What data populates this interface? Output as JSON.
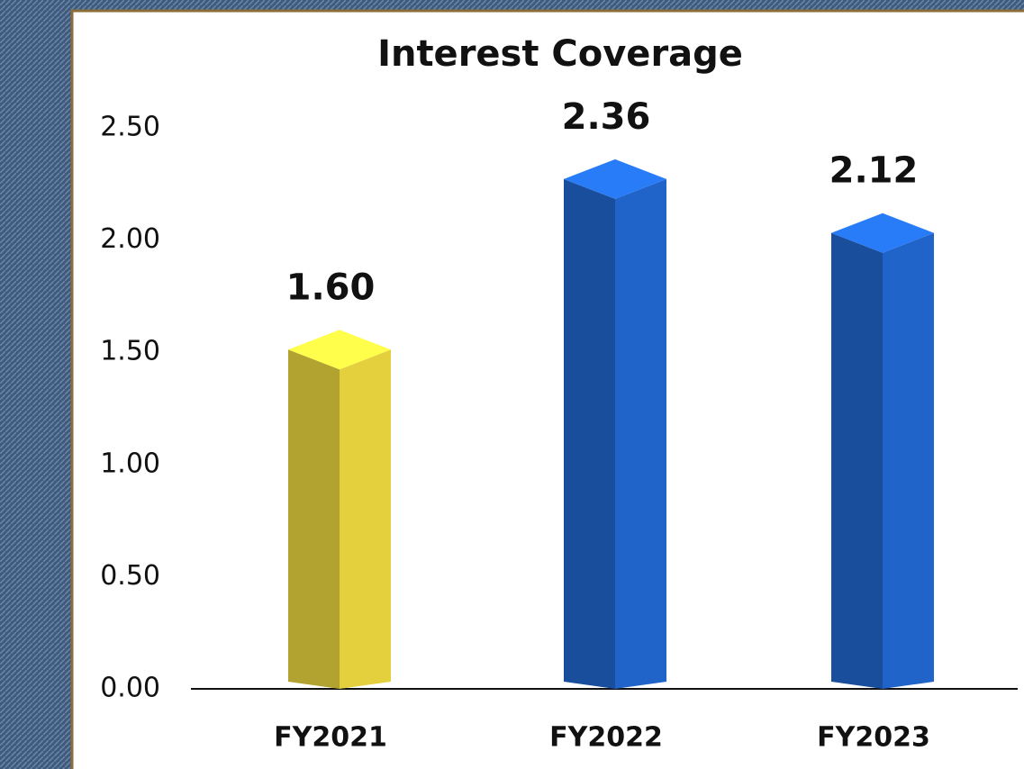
{
  "chart_data": {
    "type": "bar",
    "title": "Interest Coverage",
    "categories": [
      "FY2021",
      "FY2022",
      "FY2023"
    ],
    "values": [
      1.6,
      2.36,
      2.12
    ],
    "value_labels": [
      "1.60",
      "2.36",
      "2.12"
    ],
    "colors": [
      "#d9c63a",
      "#1f5fbf",
      "#1f5fbf"
    ],
    "ylim": [
      0,
      2.5
    ],
    "yticks": [
      {
        "value": 0,
        "label": "0.00"
      },
      {
        "value": 0.5,
        "label": "0.50"
      },
      {
        "value": 1,
        "label": "1.00"
      },
      {
        "value": 1.5,
        "label": "1.50"
      },
      {
        "value": 2,
        "label": "2.00"
      },
      {
        "value": 2.5,
        "label": "2.50"
      }
    ],
    "grid": false
  }
}
